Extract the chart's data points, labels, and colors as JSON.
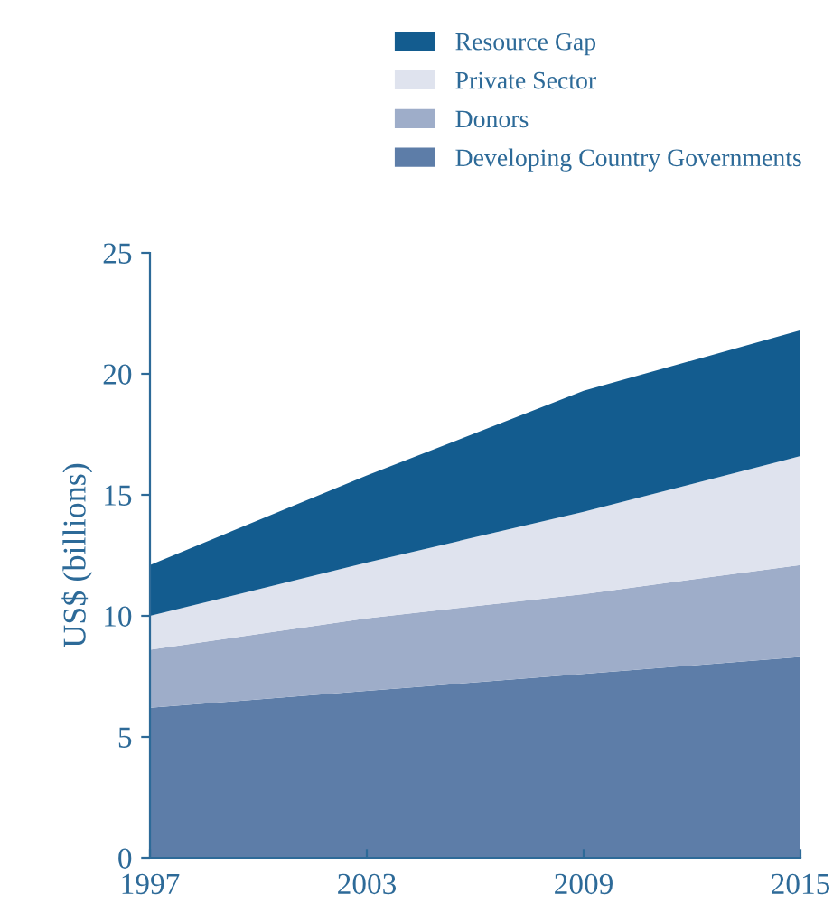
{
  "chart_data": {
    "type": "area",
    "stacked": true,
    "ylabel": "US$ (billions)",
    "x": [
      1997,
      2003,
      2009,
      2015
    ],
    "xlim": [
      1997,
      2015
    ],
    "xticks": [
      1997,
      2003,
      2009,
      2015
    ],
    "ylim": [
      0,
      25
    ],
    "yticks": [
      0,
      5,
      10,
      15,
      20,
      25
    ],
    "grid": false,
    "legend": "top right",
    "series": [
      {
        "name": "Developing Country Governments",
        "color": "#5d7da8",
        "values": [
          6.2,
          6.9,
          7.6,
          8.3
        ]
      },
      {
        "name": "Donors",
        "color": "#9eadc9",
        "values": [
          2.4,
          3.0,
          3.3,
          3.8
        ]
      },
      {
        "name": "Private Sector",
        "color": "#dfe3ee",
        "values": [
          1.4,
          2.3,
          3.4,
          4.5
        ]
      },
      {
        "name": "Resource Gap",
        "color": "#135c8f",
        "values": [
          2.1,
          3.6,
          5.0,
          5.2
        ]
      }
    ]
  }
}
